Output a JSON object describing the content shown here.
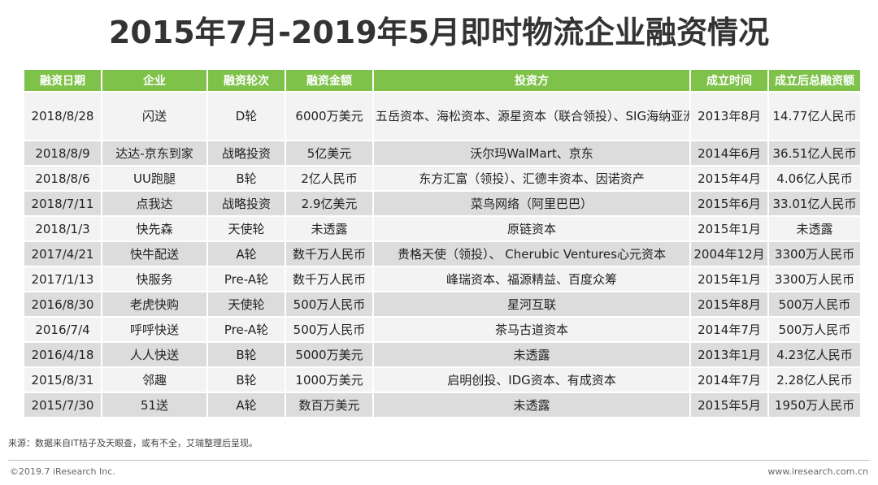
{
  "title": "2015年7月-2019年5月即时物流企业融资情况",
  "table": {
    "headers": [
      "融资日期",
      "企业",
      "融资轮次",
      "融资金额",
      "投资方",
      "成立时间",
      "成立后总融资额"
    ],
    "rows": [
      [
        "2018/8/28",
        "闪送",
        "D轮",
        "6000万美元",
        "五岳资本、海松资本、源星资本（联合领投）、SIG海纳亚洲创投、顺为资本、华联长山兴、顺亮投资、赫斯特资本、光源资本",
        "2013年8月",
        "14.77亿人民币"
      ],
      [
        "2018/8/9",
        "达达-京东到家",
        "战略投资",
        "5亿美元",
        "沃尔玛WalMart、京东",
        "2014年6月",
        "36.51亿人民币"
      ],
      [
        "2018/8/6",
        "UU跑腿",
        "B轮",
        "2亿人民币",
        "东方汇富（领投）、汇德丰资本、因诺资产",
        "2015年4月",
        "4.06亿人民币"
      ],
      [
        "2018/7/11",
        "点我达",
        "战略投资",
        "2.9亿美元",
        "菜鸟网络（阿里巴巴）",
        "2015年6月",
        "33.01亿人民币"
      ],
      [
        "2018/1/3",
        "快先森",
        "天使轮",
        "未透露",
        "原链资本",
        "2015年1月",
        "未透露"
      ],
      [
        "2017/4/21",
        "快牛配送",
        "A轮",
        "数千万人民币",
        "贵格天使（领投）、 Cherubic Ventures心元资本",
        "2004年12月",
        "3300万人民币"
      ],
      [
        "2017/1/13",
        "快服务",
        "Pre-A轮",
        "数千万人民币",
        "峰瑞资本、福源精益、百度众筹",
        "2015年1月",
        "3300万人民币"
      ],
      [
        "2016/8/30",
        "老虎快购",
        "天使轮",
        "500万人民币",
        "星河互联",
        "2015年8月",
        "500万人民币"
      ],
      [
        "2016/7/4",
        "呼呼快送",
        "Pre-A轮",
        "500万人民币",
        "茶马古道资本",
        "2014年7月",
        "500万人民币"
      ],
      [
        "2016/4/18",
        "人人快送",
        "B轮",
        "5000万美元",
        "未透露",
        "2013年1月",
        "4.23亿人民币"
      ],
      [
        "2015/8/31",
        "邻趣",
        "B轮",
        "1000万美元",
        "启明创投、IDG资本、有成资本",
        "2014年7月",
        "2.28亿人民币"
      ],
      [
        "2015/7/30",
        "51送",
        "A轮",
        "数百万美元",
        "未透露",
        "2015年5月",
        "1950万人民币"
      ]
    ]
  },
  "source_note": "来源：数据来自IT桔子及天眼查，或有不全，艾瑞整理后呈现。",
  "footer": {
    "copyright": "©2019.7 iResearch Inc.",
    "website": "www.iresearch.com.cn"
  },
  "colors": {
    "header_bg": "#7fc24a",
    "row_light": "#f3f3f3",
    "row_dark": "#dcdcdc"
  }
}
